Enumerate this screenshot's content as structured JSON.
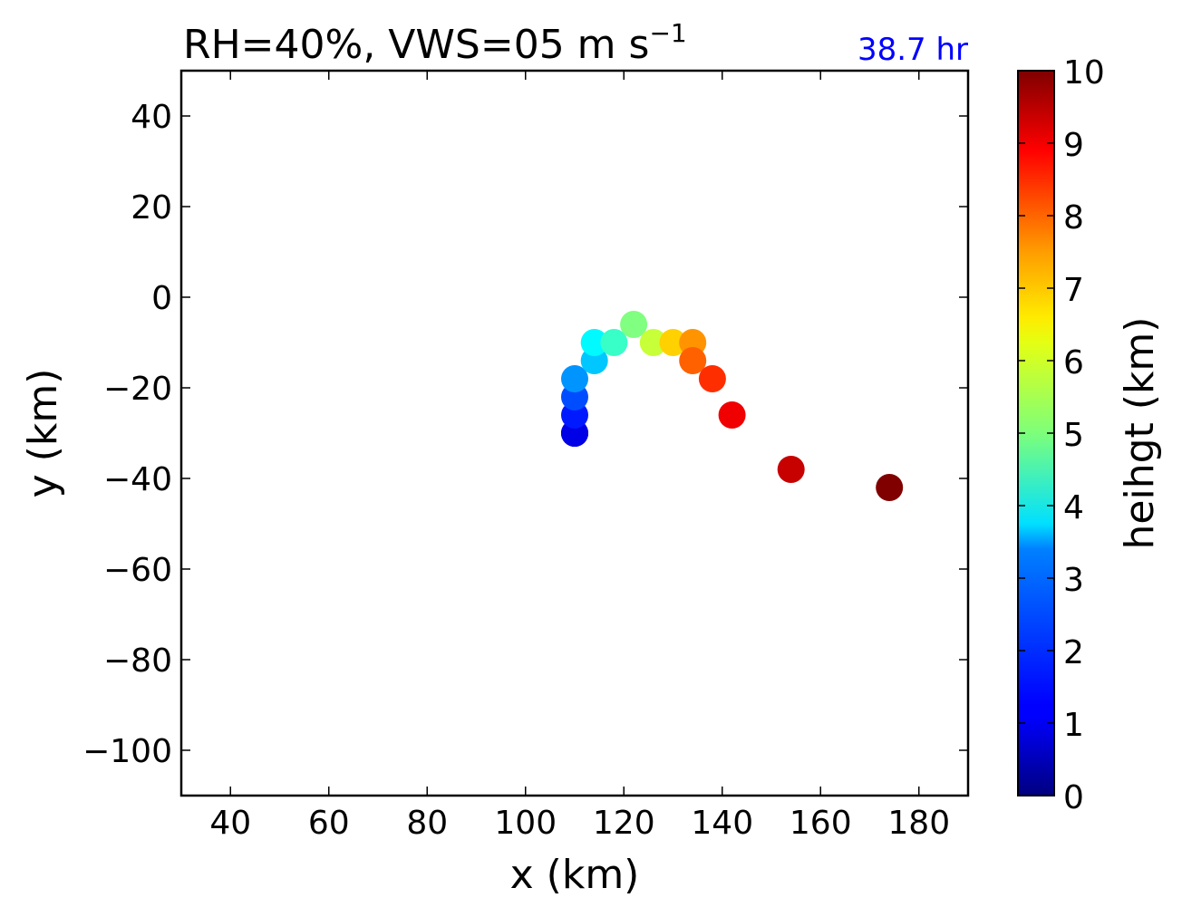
{
  "chart_data": {
    "type": "scatter",
    "title": "RH=40%, VWS=05 m s",
    "title_superscript": "−1",
    "corner_label": "38.7 hr",
    "corner_label_color": "#0000ff",
    "xlabel": "x (km)",
    "ylabel": "y (km)",
    "xlim": [
      30,
      190
    ],
    "ylim": [
      -110,
      50
    ],
    "xticks": [
      40,
      60,
      80,
      100,
      120,
      140,
      160,
      180
    ],
    "yticks": [
      -100,
      -80,
      -60,
      -40,
      -20,
      0,
      20,
      40
    ],
    "grid": false,
    "colormap": "jet",
    "colorbar": {
      "label": "heihgt (km)",
      "range": [
        0,
        10
      ],
      "ticks": [
        0,
        1,
        2,
        3,
        4,
        5,
        6,
        7,
        8,
        9,
        10
      ]
    },
    "points": [
      {
        "x": 110,
        "y": -30,
        "height": 0.0
      },
      {
        "x": 110,
        "y": -30,
        "height": 0.5
      },
      {
        "x": 110,
        "y": -30,
        "height": 1.0
      },
      {
        "x": 110,
        "y": -26,
        "height": 1.5
      },
      {
        "x": 110,
        "y": -22,
        "height": 2.0
      },
      {
        "x": 110,
        "y": -18,
        "height": 2.7
      },
      {
        "x": 114,
        "y": -14,
        "height": 3.2
      },
      {
        "x": 114,
        "y": -10,
        "height": 3.7
      },
      {
        "x": 118,
        "y": -10,
        "height": 4.3
      },
      {
        "x": 122,
        "y": -6,
        "height": 5.0
      },
      {
        "x": 126,
        "y": -10,
        "height": 5.7
      },
      {
        "x": 130,
        "y": -10,
        "height": 6.7
      },
      {
        "x": 134,
        "y": -10,
        "height": 7.3
      },
      {
        "x": 134,
        "y": -14,
        "height": 7.8
      },
      {
        "x": 138,
        "y": -18,
        "height": 8.3
      },
      {
        "x": 142,
        "y": -26,
        "height": 8.9
      },
      {
        "x": 154,
        "y": -38,
        "height": 9.3
      },
      {
        "x": 174,
        "y": -42,
        "height": 10.0
      }
    ]
  }
}
